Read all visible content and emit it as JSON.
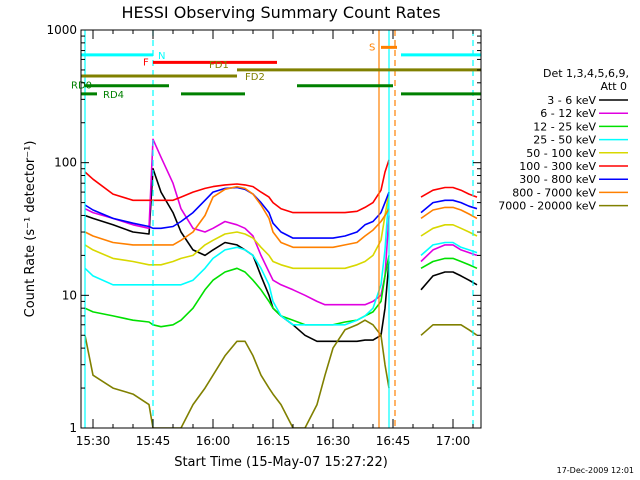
{
  "chart_data": {
    "type": "line",
    "title": "HESSI Observing Summary Count Rates",
    "xlabel": "Start Time (15-May-07 15:27:22)",
    "ylabel": "Count Rate (s⁻¹ detector⁻¹)",
    "y_scale": "log",
    "ylim": [
      1,
      1000
    ],
    "xlim": [
      "15:27",
      "17:07"
    ],
    "x_tick_labels": [
      "15:30",
      "15:45",
      "16:00",
      "16:15",
      "16:30",
      "16:45",
      "17:00"
    ],
    "y_tick_labels": [
      "1",
      "10",
      "100",
      "1000"
    ],
    "y_tick_values": [
      1,
      10,
      100,
      1000
    ],
    "x_tick_minutes": [
      3,
      18,
      33,
      48,
      63,
      78,
      93
    ],
    "minor_x_step_minutes": 5,
    "grid": false,
    "legend_position": "right",
    "legend_title": [
      "Det 1,3,4,5,6,9,",
      "Att 0"
    ],
    "timestamp": "17-Dec-2009 12:01",
    "x": [
      "15:28",
      "15:30",
      "15:35",
      "15:40",
      "15:44",
      "15:45",
      "15:47",
      "15:50",
      "15:52",
      "15:55",
      "15:58",
      "16:00",
      "16:03",
      "16:06",
      "16:08",
      "16:10",
      "16:12",
      "16:14",
      "16:15",
      "16:17",
      "16:20",
      "16:23",
      "16:26",
      "16:28",
      "16:30",
      "16:33",
      "16:36",
      "16:38",
      "16:40",
      "16:42",
      "16:43",
      "16:44",
      "16:49",
      "16:52",
      "16:55",
      "16:58",
      "17:00",
      "17:02",
      "17:04",
      "17:06"
    ],
    "series": [
      {
        "name": "3 - 6 keV",
        "color": "#000000",
        "values": [
          40,
          38,
          34,
          30,
          29,
          90,
          60,
          42,
          30,
          22,
          20,
          22,
          25,
          24,
          22,
          20,
          14,
          10,
          8,
          7,
          6,
          5,
          4.5,
          4.5,
          4.5,
          4.5,
          4.5,
          4.6,
          4.6,
          5,
          8,
          18,
          null,
          11,
          14,
          15,
          15,
          14,
          13,
          12
        ]
      },
      {
        "name": "6 - 12 keV",
        "color": "#e000e0",
        "values": [
          45,
          42,
          38,
          34,
          32,
          150,
          110,
          70,
          45,
          32,
          30,
          32,
          36,
          34,
          32,
          28,
          20,
          15,
          13,
          12,
          11,
          10,
          9,
          8.5,
          8.5,
          8.5,
          8.5,
          8.5,
          9,
          10,
          14,
          40,
          null,
          18,
          22,
          24,
          24,
          22,
          21,
          20
        ]
      },
      {
        "name": "12 - 25 keV",
        "color": "#00e000",
        "values": [
          8,
          7.5,
          7,
          6.5,
          6.3,
          6,
          5.8,
          6,
          6.5,
          8,
          11,
          13,
          15,
          16,
          15,
          13,
          11,
          9,
          8,
          7,
          6.5,
          6,
          6,
          6,
          6,
          6.3,
          6.5,
          7,
          7.5,
          9,
          14,
          20,
          null,
          16,
          18,
          19,
          19,
          18,
          17,
          16
        ]
      },
      {
        "name": "25 - 50 keV",
        "color": "#00ffff",
        "values": [
          16,
          14,
          12,
          12,
          12,
          12,
          12,
          12,
          12,
          13,
          16,
          19,
          22,
          23,
          22,
          20,
          16,
          12,
          9,
          7,
          6,
          6,
          6,
          6,
          6,
          6,
          6.5,
          7,
          8,
          12,
          22,
          60,
          null,
          20,
          24,
          25,
          25,
          23,
          22,
          21
        ]
      },
      {
        "name": "50 - 100 keV",
        "color": "#d8d800",
        "values": [
          24,
          22,
          19,
          18,
          17,
          17,
          17,
          18,
          19,
          20,
          24,
          26,
          29,
          30,
          29,
          27,
          23,
          20,
          18,
          17,
          16,
          16,
          16,
          16,
          16,
          16,
          17,
          18,
          20,
          26,
          40,
          60,
          null,
          28,
          32,
          34,
          34,
          32,
          30,
          28
        ]
      },
      {
        "name": "100 - 300 keV",
        "color": "#ff0000",
        "values": [
          85,
          75,
          58,
          52,
          52,
          52,
          52,
          52,
          55,
          60,
          64,
          66,
          68,
          69,
          68,
          66,
          60,
          55,
          50,
          45,
          42,
          42,
          42,
          42,
          42,
          42,
          43,
          46,
          50,
          62,
          85,
          105,
          null,
          55,
          62,
          65,
          65,
          62,
          58,
          55
        ]
      },
      {
        "name": "300 - 800 keV",
        "color": "#0000ff",
        "values": [
          48,
          44,
          38,
          35,
          33,
          32,
          32,
          33,
          36,
          42,
          52,
          60,
          64,
          65,
          63,
          58,
          50,
          42,
          35,
          30,
          27,
          27,
          27,
          27,
          27,
          28,
          30,
          34,
          36,
          42,
          50,
          60,
          null,
          42,
          50,
          52,
          52,
          50,
          47,
          45
        ]
      },
      {
        "name": "800 - 7000 keV",
        "color": "#ff8000",
        "values": [
          30,
          28,
          25,
          24,
          24,
          24,
          24,
          24,
          26,
          30,
          40,
          55,
          63,
          66,
          64,
          58,
          48,
          38,
          30,
          25,
          23,
          23,
          23,
          23,
          23,
          24,
          25,
          28,
          31,
          36,
          40,
          45,
          null,
          38,
          44,
          46,
          46,
          44,
          41,
          38
        ]
      },
      {
        "name": "7000 - 20000 keV",
        "color": "#808000",
        "values": [
          5,
          2.5,
          2,
          1.8,
          1.5,
          1,
          1,
          1,
          1,
          1.5,
          2,
          2.5,
          3.5,
          4.5,
          4.5,
          3.5,
          2.5,
          2,
          1.8,
          1.5,
          1,
          1,
          1.5,
          2.5,
          4,
          5.5,
          6,
          6.5,
          6,
          5,
          3,
          2,
          null,
          5,
          6,
          6,
          6,
          6,
          5.5,
          5
        ]
      }
    ],
    "flag_bars": [
      {
        "label": "N",
        "color": "#00ffff",
        "y_value": 650,
        "segments": [
          [
            "15:27",
            "15:45"
          ],
          [
            "16:47",
            "17:07"
          ]
        ]
      },
      {
        "label": "F",
        "color": "#ff0000",
        "y_value": 570,
        "segments": [
          [
            "15:45",
            "16:16"
          ]
        ]
      },
      {
        "label": "S",
        "color": "#ff8000",
        "y_value": 740,
        "segments": [
          [
            "16:42",
            "16:46"
          ]
        ]
      },
      {
        "label": "FD1",
        "color": "#808000",
        "y_value": 500,
        "segments": [
          [
            "16:06",
            "17:07"
          ]
        ]
      },
      {
        "label": "FD2",
        "color": "#808000",
        "y_value": 450,
        "segments": [
          [
            "15:27",
            "16:06"
          ]
        ]
      },
      {
        "label": "RD0",
        "color": "#008000",
        "y_value": 380,
        "segments": [
          [
            "15:28",
            "15:49"
          ],
          [
            "16:21",
            "16:45"
          ]
        ]
      },
      {
        "label": "RD4",
        "color": "#008000",
        "y_value": 330,
        "segments": [
          [
            "15:27",
            "15:31"
          ],
          [
            "15:52",
            "16:08"
          ],
          [
            "16:47",
            "17:07"
          ]
        ]
      }
    ],
    "vertical_markers": [
      {
        "time": "15:28",
        "color": "#00ffff",
        "style": "solid"
      },
      {
        "time": "15:45",
        "color": "#00ffff",
        "style": "dashed"
      },
      {
        "time": "16:41.5",
        "color": "#ff8000",
        "style": "solid"
      },
      {
        "time": "16:44",
        "color": "#00ffff",
        "style": "solid"
      },
      {
        "time": "16:45.5",
        "color": "#ff8000",
        "style": "dashed"
      },
      {
        "time": "17:05",
        "color": "#00ffff",
        "style": "dashed"
      }
    ]
  }
}
